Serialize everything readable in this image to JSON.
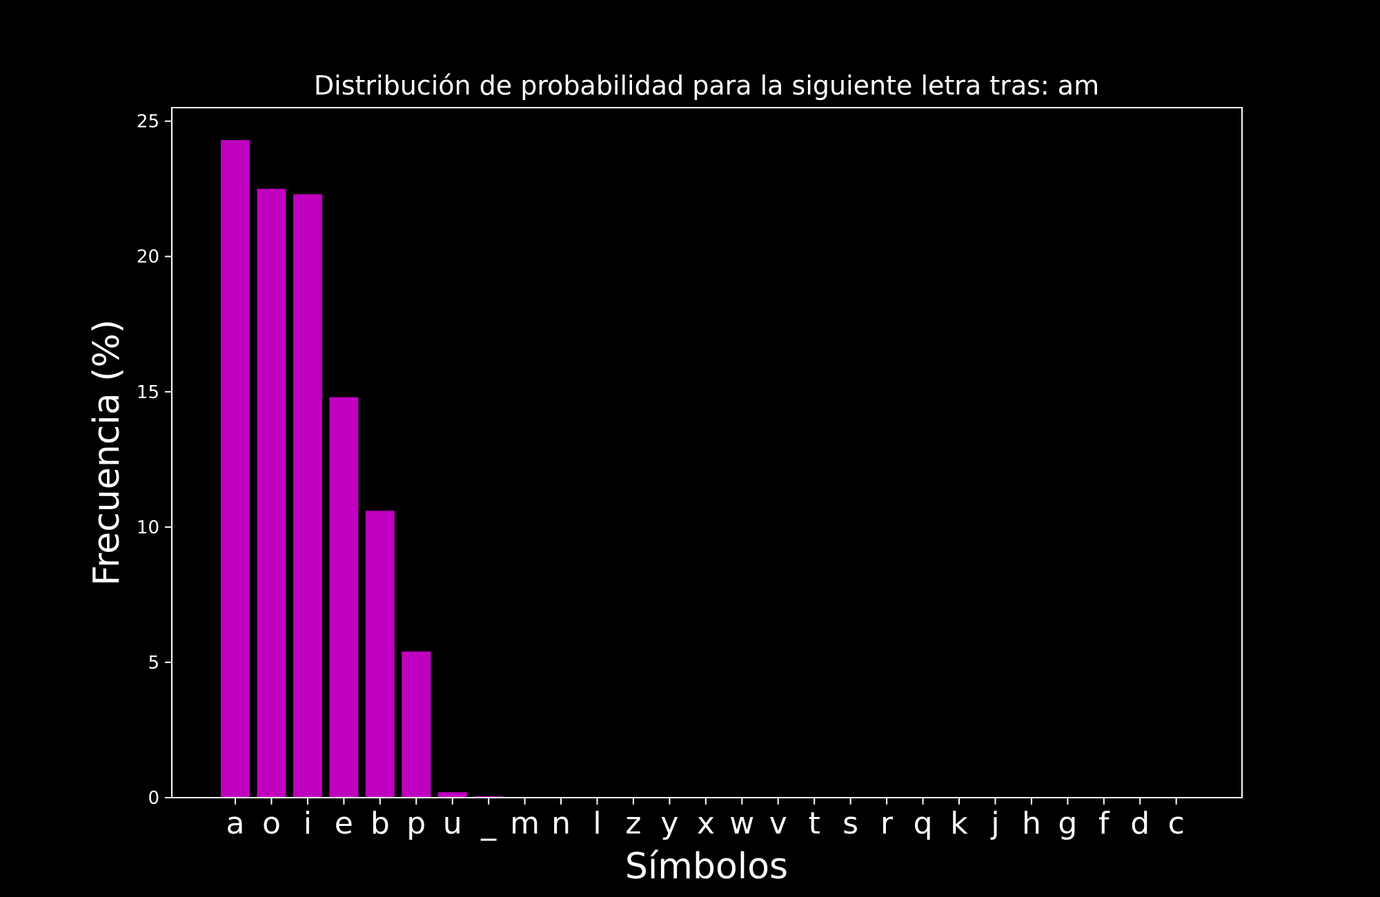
{
  "chart_data": {
    "type": "bar",
    "title": "Distribución de probabilidad para la siguiente letra tras: am",
    "xlabel": "Símbolos",
    "ylabel": "Frecuencia (%)",
    "categories": [
      "a",
      "o",
      "i",
      "e",
      "b",
      "p",
      "u",
      "_",
      "m",
      "n",
      "l",
      "z",
      "y",
      "x",
      "w",
      "v",
      "t",
      "s",
      "r",
      "q",
      "k",
      "j",
      "h",
      "g",
      "f",
      "d",
      "c"
    ],
    "values": [
      24.3,
      22.5,
      22.3,
      14.8,
      10.6,
      5.4,
      0.2,
      0.05,
      0,
      0,
      0,
      0,
      0,
      0,
      0,
      0,
      0,
      0,
      0,
      0,
      0,
      0,
      0,
      0,
      0,
      0,
      0
    ],
    "ylim": [
      0,
      25.5
    ],
    "yticks": [
      0,
      5,
      10,
      15,
      20,
      25
    ],
    "grid": false,
    "colors": {
      "bar": "#bf00bf",
      "background": "#000000",
      "axes": "#ffffff",
      "text": "#ffffff"
    }
  }
}
